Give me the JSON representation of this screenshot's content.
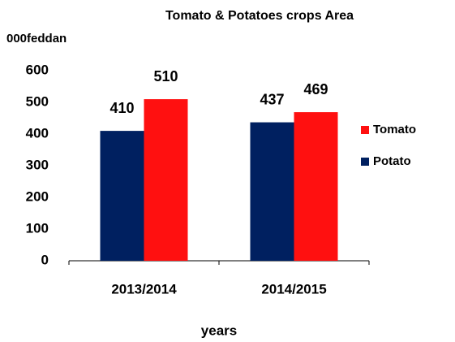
{
  "chart_data": {
    "type": "bar",
    "title": "Tomato & Potatoes crops Area",
    "y_label": "000feddan",
    "x_label": "years",
    "categories": [
      "2013/2014",
      "2014/2015"
    ],
    "series": [
      {
        "name": "Potato",
        "color": "#002060",
        "values": [
          410,
          437
        ]
      },
      {
        "name": "Tomato",
        "color": "#ff1010",
        "values": [
          510,
          469
        ]
      }
    ],
    "ylim": [
      0,
      600
    ],
    "yticks": [
      0,
      100,
      200,
      300,
      400,
      500,
      600
    ],
    "grid": false,
    "legend": "right"
  }
}
